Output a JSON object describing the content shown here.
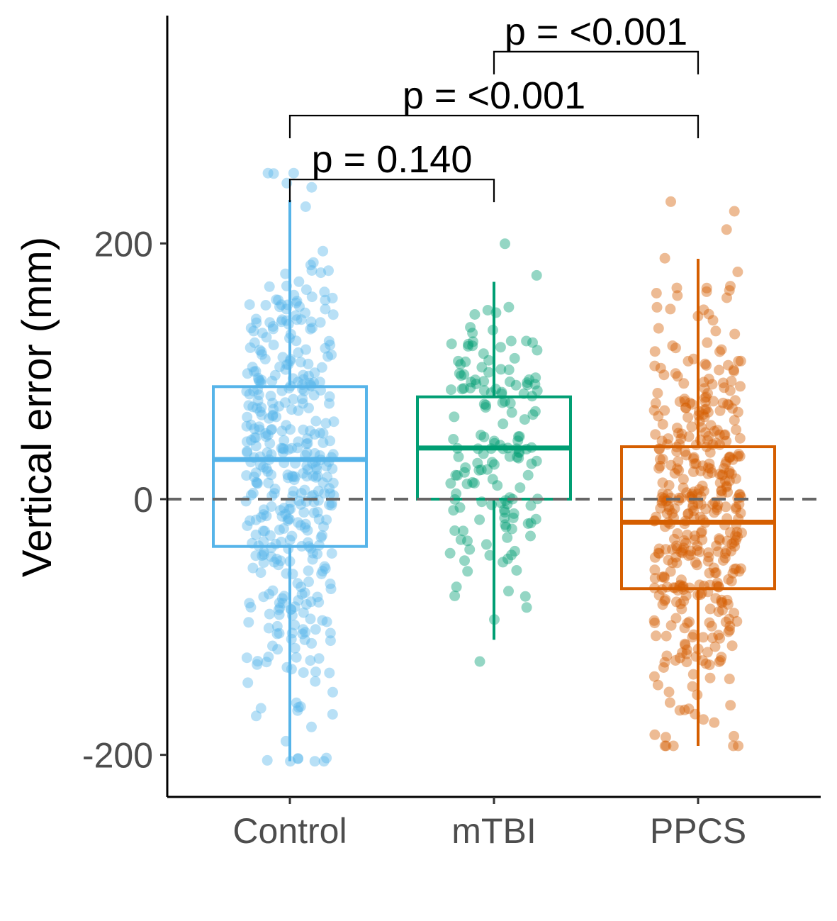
{
  "chart_data": {
    "type": "box",
    "ylabel": "Vertical error (mm)",
    "xlabel": "",
    "categories": [
      "Control",
      "mTBI",
      "PPCS"
    ],
    "ylim": [
      -233,
      378
    ],
    "y_ticks": [
      -200,
      0,
      200
    ],
    "reference_line": {
      "y": 0,
      "style": "dashed",
      "color": "#666666"
    },
    "grid": false,
    "legend": "none",
    "groups": [
      {
        "name": "Control",
        "color": "#56B4E9",
        "whisker_low": -205,
        "q1": -37,
        "median": 31,
        "q3": 88,
        "whisker_high": 234,
        "point_count": 420,
        "points_range": [
          -205,
          255
        ]
      },
      {
        "name": "mTBI",
        "color": "#009E73",
        "whisker_low": -110,
        "q1": 0,
        "median": 40,
        "q3": 80,
        "whisker_high": 170,
        "point_count": 160,
        "points_range": [
          -127,
          205
        ]
      },
      {
        "name": "PPCS",
        "color": "#D55E00",
        "whisker_low": -193,
        "q1": -70,
        "median": -18,
        "q3": 41,
        "whisker_high": 188,
        "point_count": 430,
        "points_range": [
          -193,
          246
        ]
      }
    ],
    "comparisons": [
      {
        "groups": [
          "Control",
          "mTBI"
        ],
        "label": "p = 0.140",
        "y": 250
      },
      {
        "groups": [
          "Control",
          "PPCS"
        ],
        "label": "p = <0.001",
        "y": 300
      },
      {
        "groups": [
          "mTBI",
          "PPCS"
        ],
        "label": "p = <0.001",
        "y": 350
      }
    ]
  }
}
